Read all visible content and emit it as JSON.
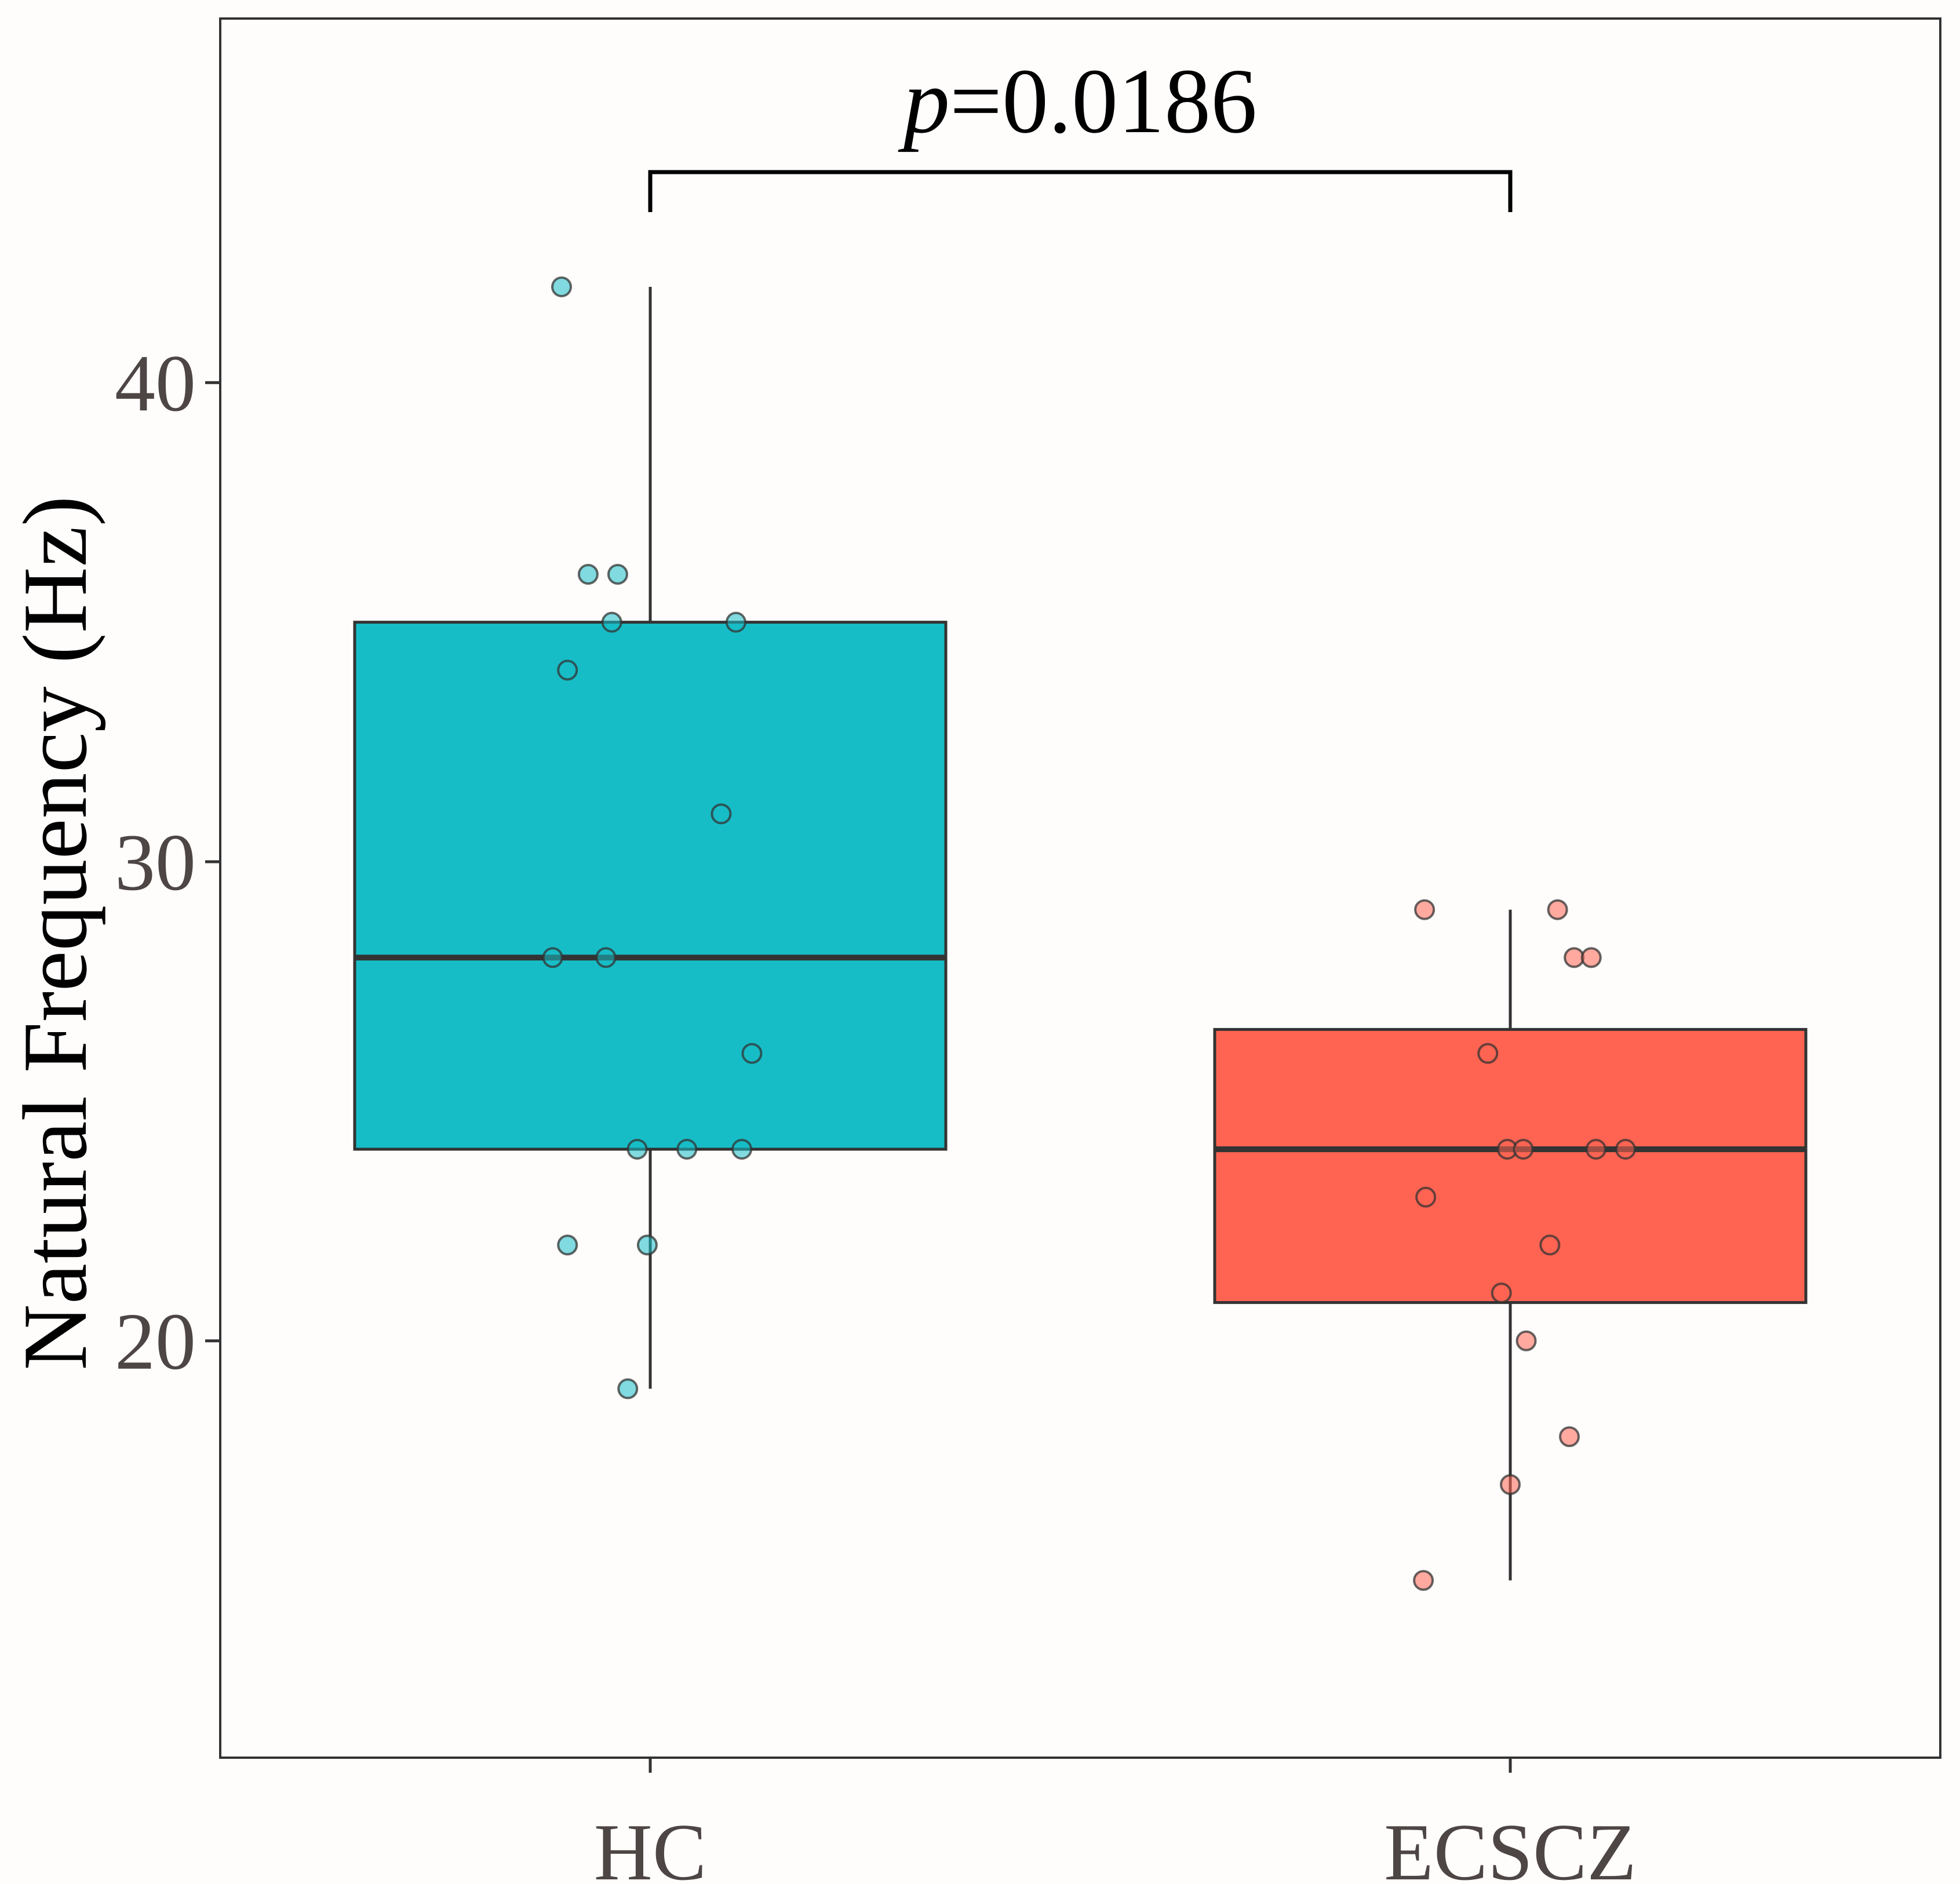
{
  "chart_data": {
    "type": "boxplot",
    "title": "",
    "xlabel": "",
    "ylabel": "Natural Frequency (Hz)",
    "ylim": [
      11.3,
      47.6
    ],
    "yticks": [
      20,
      30,
      40
    ],
    "ytick_labels": [
      "20",
      "30",
      "40"
    ],
    "categories": [
      "HC",
      "ECSCZ"
    ],
    "annotation": {
      "p_prefix": "p",
      "p_value_text": "=0.0186",
      "compares": [
        "HC",
        "ECSCZ"
      ]
    },
    "colors": {
      "HC": "#17bdc6",
      "ECSCZ": "#ff6452",
      "box_line": "#333333",
      "panel_border": "#333333"
    },
    "series": [
      {
        "name": "HC",
        "box": {
          "whisker_low": 19,
          "q1": 24,
          "median": 28,
          "q3": 35,
          "whisker_high": 42
        },
        "points": [
          {
            "x": -0.15,
            "y": 42
          },
          {
            "x": -0.105,
            "y": 36
          },
          {
            "x": -0.055,
            "y": 36
          },
          {
            "x": -0.065,
            "y": 35
          },
          {
            "x": 0.145,
            "y": 35
          },
          {
            "x": -0.14,
            "y": 34
          },
          {
            "x": 0.12,
            "y": 31
          },
          {
            "x": -0.165,
            "y": 28
          },
          {
            "x": -0.075,
            "y": 28
          },
          {
            "x": 0.172,
            "y": 26
          },
          {
            "x": -0.022,
            "y": 24
          },
          {
            "x": 0.062,
            "y": 24
          },
          {
            "x": 0.155,
            "y": 24
          },
          {
            "x": -0.14,
            "y": 22
          },
          {
            "x": -0.005,
            "y": 22
          },
          {
            "x": -0.038,
            "y": 19
          }
        ]
      },
      {
        "name": "ECSCZ",
        "box": {
          "whisker_low": 15,
          "q1": 20.8,
          "median": 24,
          "q3": 26.5,
          "whisker_high": 29
        },
        "points": [
          {
            "x": -0.145,
            "y": 29
          },
          {
            "x": 0.08,
            "y": 29
          },
          {
            "x": 0.108,
            "y": 28
          },
          {
            "x": 0.137,
            "y": 28
          },
          {
            "x": -0.038,
            "y": 26
          },
          {
            "x": -0.005,
            "y": 24
          },
          {
            "x": 0.022,
            "y": 24
          },
          {
            "x": 0.145,
            "y": 24
          },
          {
            "x": 0.195,
            "y": 24
          },
          {
            "x": -0.143,
            "y": 23
          },
          {
            "x": 0.067,
            "y": 22
          },
          {
            "x": -0.015,
            "y": 21
          },
          {
            "x": 0.027,
            "y": 20
          },
          {
            "x": 0.1,
            "y": 18
          },
          {
            "x": 0.0,
            "y": 17
          },
          {
            "x": -0.147,
            "y": 15
          }
        ]
      }
    ]
  }
}
